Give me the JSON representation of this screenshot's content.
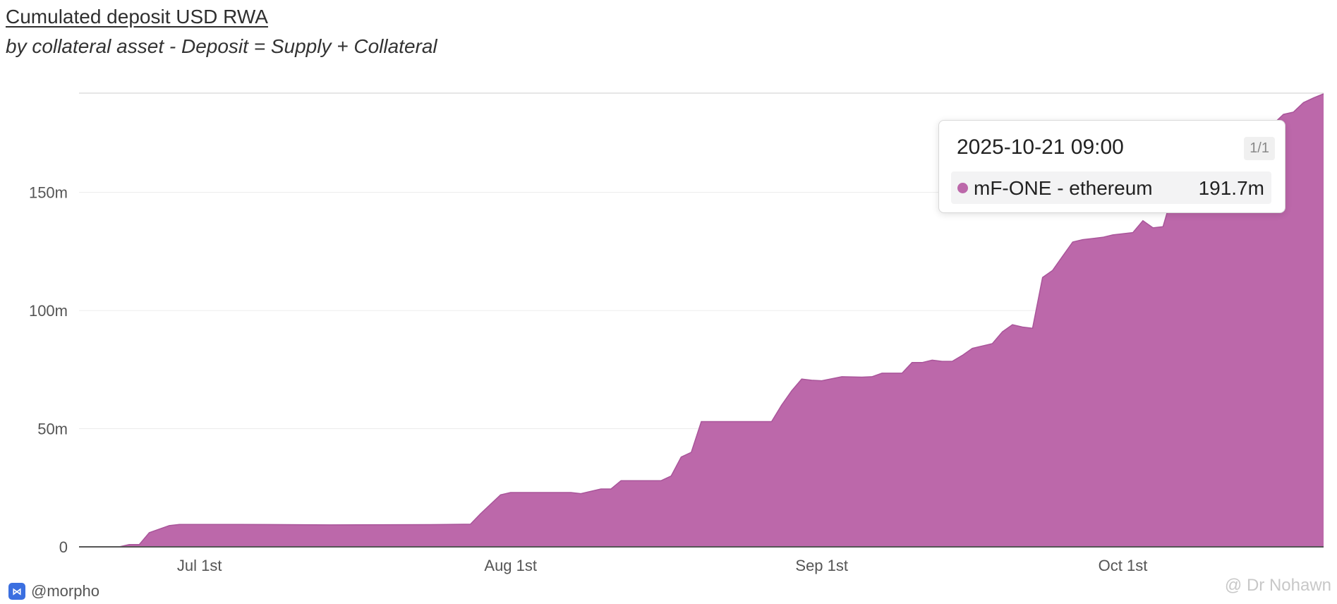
{
  "header": {
    "title": "Cumulated deposit USD RWA",
    "subtitle": "by collateral asset - Deposit = Supply + Collateral"
  },
  "tooltip": {
    "date": "2025-10-21 09:00",
    "page": "1/1",
    "series_name": "mF-ONE - ethereum",
    "value": "191.7m",
    "dot_color": "#bc68aa"
  },
  "footer": {
    "handle": "@morpho",
    "logo_icon": "morpho-logo-icon",
    "logo_color": "#3b6fe0"
  },
  "watermark": "@ Dr Nohawn",
  "chart_data": {
    "type": "area",
    "x_axis": {
      "ticks": [
        {
          "date": "2025-07-01",
          "label": "Jul 1st"
        },
        {
          "date": "2025-08-01",
          "label": "Aug 1st"
        },
        {
          "date": "2025-09-01",
          "label": "Sep 1st"
        },
        {
          "date": "2025-10-01",
          "label": "Oct 1st"
        }
      ],
      "range": [
        "2025-06-19",
        "2025-10-21"
      ]
    },
    "y_axis": {
      "ticks": [
        {
          "value": 0,
          "label": "0"
        },
        {
          "value": 50,
          "label": "50m"
        },
        {
          "value": 100,
          "label": "100m"
        },
        {
          "value": 150,
          "label": "150m"
        }
      ],
      "range": [
        0,
        192
      ],
      "unit": "m"
    },
    "grid": true,
    "color": "#bc68aa",
    "series": [
      {
        "name": "mF-ONE - ethereum",
        "points": [
          [
            "2025-06-19",
            0
          ],
          [
            "2025-06-23",
            0
          ],
          [
            "2025-06-24",
            1
          ],
          [
            "2025-06-25",
            1
          ],
          [
            "2025-06-26",
            6
          ],
          [
            "2025-06-28",
            9
          ],
          [
            "2025-06-29",
            9.5
          ],
          [
            "2025-07-05",
            9.5
          ],
          [
            "2025-07-14",
            9.3
          ],
          [
            "2025-07-24",
            9.4
          ],
          [
            "2025-07-28",
            9.6
          ],
          [
            "2025-07-29",
            14
          ],
          [
            "2025-07-30",
            18
          ],
          [
            "2025-07-31",
            22
          ],
          [
            "2025-08-01",
            23
          ],
          [
            "2025-08-07",
            23
          ],
          [
            "2025-08-08",
            22.5
          ],
          [
            "2025-08-10",
            24.5
          ],
          [
            "2025-08-11",
            24.5
          ],
          [
            "2025-08-12",
            28
          ],
          [
            "2025-08-16",
            28
          ],
          [
            "2025-08-17",
            30
          ],
          [
            "2025-08-18",
            38
          ],
          [
            "2025-08-19",
            40
          ],
          [
            "2025-08-20",
            53
          ],
          [
            "2025-08-23",
            53
          ],
          [
            "2025-08-25",
            53
          ],
          [
            "2025-08-27",
            53
          ],
          [
            "2025-08-28",
            60
          ],
          [
            "2025-08-29",
            66
          ],
          [
            "2025-08-30",
            71
          ],
          [
            "2025-08-31",
            70.5
          ],
          [
            "2025-09-01",
            70.3
          ],
          [
            "2025-09-03",
            72
          ],
          [
            "2025-09-05",
            71.8
          ],
          [
            "2025-09-06",
            72
          ],
          [
            "2025-09-07",
            73.5
          ],
          [
            "2025-09-09",
            73.5
          ],
          [
            "2025-09-10",
            78
          ],
          [
            "2025-09-11",
            78
          ],
          [
            "2025-09-12",
            79
          ],
          [
            "2025-09-13",
            78.5
          ],
          [
            "2025-09-14",
            78.5
          ],
          [
            "2025-09-15",
            81
          ],
          [
            "2025-09-16",
            84
          ],
          [
            "2025-09-17",
            85
          ],
          [
            "2025-09-18",
            86
          ],
          [
            "2025-09-19",
            91
          ],
          [
            "2025-09-20",
            94
          ],
          [
            "2025-09-21",
            93
          ],
          [
            "2025-09-22",
            92.5
          ],
          [
            "2025-09-23",
            114
          ],
          [
            "2025-09-24",
            117
          ],
          [
            "2025-09-25",
            123
          ],
          [
            "2025-09-26",
            129
          ],
          [
            "2025-09-27",
            130
          ],
          [
            "2025-09-28",
            130.5
          ],
          [
            "2025-09-29",
            131
          ],
          [
            "2025-09-30",
            132
          ],
          [
            "2025-10-01",
            132.5
          ],
          [
            "2025-10-02",
            133
          ],
          [
            "2025-10-03",
            138
          ],
          [
            "2025-10-04",
            135
          ],
          [
            "2025-10-05",
            135.5
          ],
          [
            "2025-10-06",
            150
          ],
          [
            "2025-10-08",
            155
          ],
          [
            "2025-10-10",
            165
          ],
          [
            "2025-10-12",
            172
          ],
          [
            "2025-10-14",
            176
          ],
          [
            "2025-10-16",
            179
          ],
          [
            "2025-10-17",
            183
          ],
          [
            "2025-10-18",
            184
          ],
          [
            "2025-10-19",
            188
          ],
          [
            "2025-10-20",
            190
          ],
          [
            "2025-10-21",
            191.7
          ]
        ]
      }
    ]
  }
}
